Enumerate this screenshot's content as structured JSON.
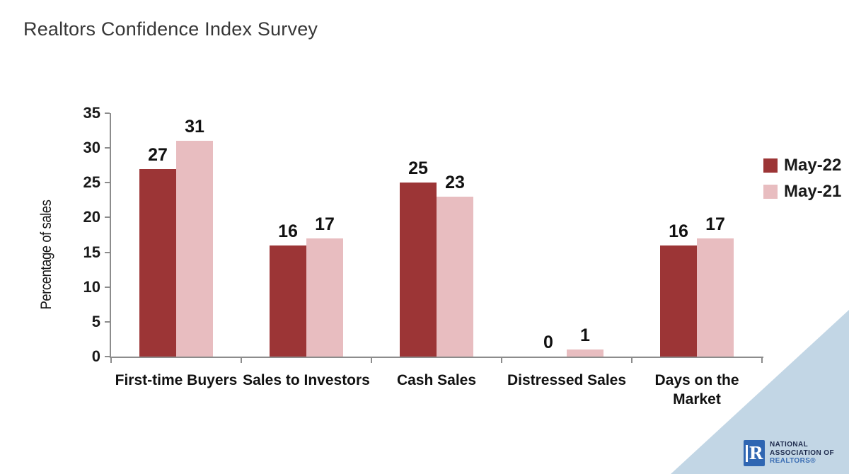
{
  "title": "Realtors Confidence Index Survey",
  "chart_data": {
    "type": "bar",
    "categories": [
      "First-time Buyers",
      "Sales to Investors",
      "Cash Sales",
      "Distressed Sales",
      "Days on the Market"
    ],
    "series": [
      {
        "name": "May-22",
        "color": "#9c3536",
        "values": [
          27,
          16,
          25,
          0,
          16
        ]
      },
      {
        "name": "May-21",
        "color": "#e8bdc0",
        "values": [
          31,
          17,
          23,
          1,
          17
        ]
      }
    ],
    "title": "Realtors Confidence Index Survey",
    "xlabel": "",
    "ylabel": "Percentage of sales",
    "ylim": [
      0,
      35
    ],
    "yticks": [
      0,
      5,
      10,
      15,
      20,
      25,
      30,
      35
    ],
    "grid": false,
    "legend_position": "right",
    "bar_value_labels": true
  },
  "colors": {
    "axis": "#8c8c8c",
    "corner_triangle": "#c2d6e5",
    "logo_blue": "#2f66b2",
    "logo_navy": "#1e2b4d",
    "logo_realtors_blue": "#3a6db3"
  },
  "footer_logo": {
    "mark_letter": "R",
    "line1": "NATIONAL",
    "line2": "ASSOCIATION OF",
    "line3": "REALTORS®"
  }
}
